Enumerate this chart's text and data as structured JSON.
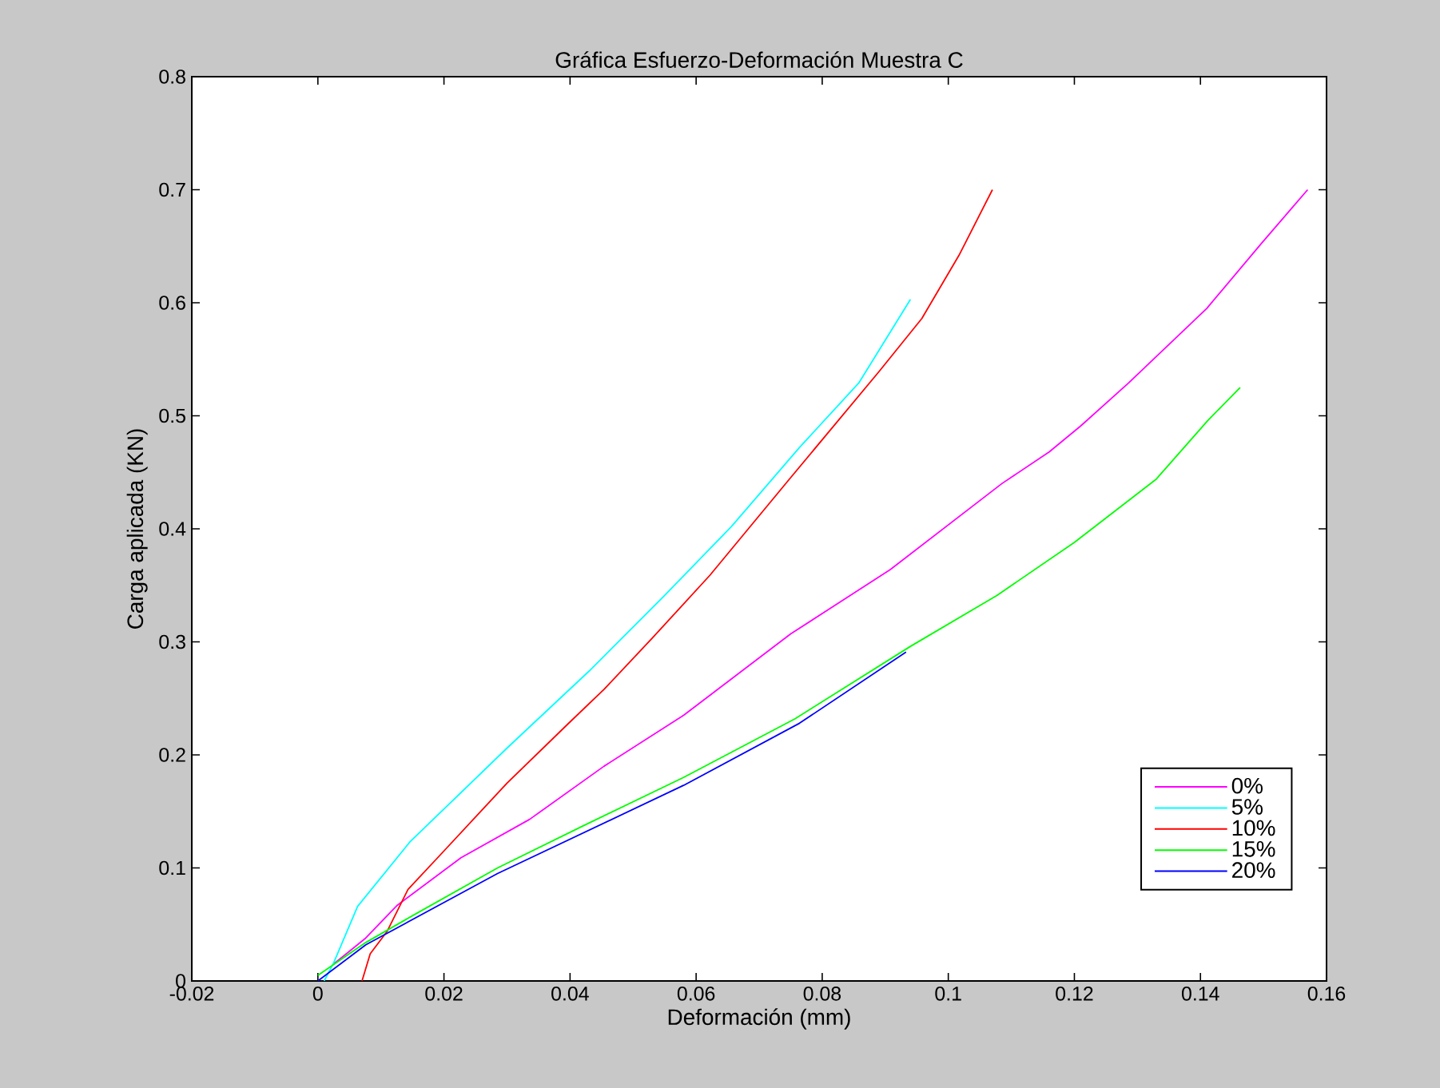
{
  "chart_data": {
    "type": "line",
    "title": "Gráfica Esfuerzo-Deformación Muestra C",
    "xlabel": "Deformación (mm)",
    "ylabel": "Carga aplicada (KN)",
    "xlim": [
      -0.02,
      0.16
    ],
    "ylim": [
      0,
      0.8
    ],
    "xticks": [
      -0.02,
      0,
      0.02,
      0.04,
      0.06,
      0.08,
      0.1,
      0.12,
      0.14,
      0.16
    ],
    "yticks": [
      0,
      0.1,
      0.2,
      0.3,
      0.4,
      0.5,
      0.6,
      0.7,
      0.8
    ],
    "grid": false,
    "legend": "bottom right",
    "marker": "none",
    "line_style": "solid",
    "series": [
      {
        "name": "0%",
        "color": "#ff00ff",
        "x": [
          0.0025,
          0.0076,
          0.0126,
          0.0227,
          0.0336,
          0.0454,
          0.058,
          0.075,
          0.0908,
          0.1085,
          0.116,
          0.121,
          0.1286,
          0.141,
          0.1496,
          0.157
        ],
        "values": [
          0.015,
          0.038,
          0.067,
          0.109,
          0.143,
          0.19,
          0.235,
          0.307,
          0.364,
          0.44,
          0.468,
          0.491,
          0.529,
          0.595,
          0.652,
          0.7
        ]
      },
      {
        "name": "5%",
        "color": "#00ffff",
        "x": [
          0.001,
          0.0025,
          0.0063,
          0.0146,
          0.03,
          0.043,
          0.055,
          0.0656,
          0.0764,
          0.0858,
          0.094
        ],
        "values": [
          0,
          0.016,
          0.066,
          0.123,
          0.206,
          0.274,
          0.341,
          0.402,
          0.472,
          0.529,
          0.603
        ]
      },
      {
        "name": "10%",
        "color": "#ff0000",
        "x": [
          0.007,
          0.0083,
          0.011,
          0.0143,
          0.02,
          0.03,
          0.0396,
          0.0454,
          0.053,
          0.0622,
          0.0748,
          0.089,
          0.0958,
          0.1017,
          0.107
        ],
        "values": [
          0,
          0.024,
          0.044,
          0.081,
          0.115,
          0.175,
          0.227,
          0.258,
          0.303,
          0.359,
          0.444,
          0.539,
          0.586,
          0.642,
          0.7
        ]
      },
      {
        "name": "15%",
        "color": "#00ff00",
        "x": [
          0,
          0.0076,
          0.0151,
          0.0285,
          0.042,
          0.058,
          0.0757,
          0.094,
          0.1077,
          0.12,
          0.133,
          0.1412,
          0.1463
        ],
        "values": [
          0.005,
          0.034,
          0.058,
          0.1,
          0.137,
          0.18,
          0.232,
          0.296,
          0.341,
          0.388,
          0.444,
          0.496,
          0.525
        ]
      },
      {
        "name": "20%",
        "color": "#0000ff",
        "x": [
          0,
          0.0076,
          0.0285,
          0.058,
          0.0764,
          0.0933
        ],
        "values": [
          0,
          0.032,
          0.095,
          0.173,
          0.228,
          0.291
        ]
      }
    ]
  }
}
